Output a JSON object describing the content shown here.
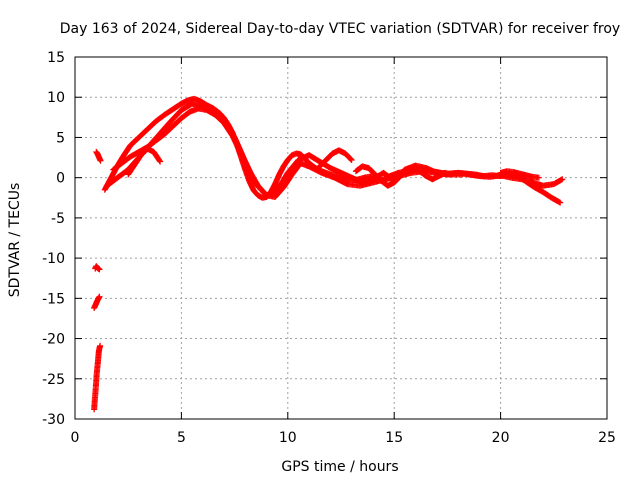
{
  "chart_data": {
    "type": "scatter",
    "title": "Day 163 of 2024, Sidereal Day-to-day VTEC variation (SDTVAR) for receiver froy",
    "xlabel": "GPS time / hours",
    "ylabel": "SDTVAR / TECUs",
    "xlim": [
      0,
      25
    ],
    "ylim": [
      -30,
      15
    ],
    "xticks": [
      0,
      5,
      10,
      15,
      20,
      25
    ],
    "yticks": [
      -30,
      -25,
      -20,
      -15,
      -10,
      -5,
      0,
      5,
      10,
      15
    ],
    "grid": true,
    "marker": "plus",
    "series": [
      {
        "name": "SDTVAR",
        "color": "#ff0000",
        "tracks": [
          {
            "x": [
              1.0,
              1.05,
              1.1,
              1.15,
              1.2
            ],
            "y": [
              3.2,
              3.0,
              2.7,
              2.4,
              2.1
            ]
          },
          {
            "x": [
              0.95,
              1.0,
              1.05,
              1.1,
              1.15
            ],
            "y": [
              -11.3,
              -11.0,
              -11.2,
              -11.3,
              -11.4
            ]
          },
          {
            "x": [
              0.9,
              0.95,
              1.0,
              1.05,
              1.1,
              1.15
            ],
            "y": [
              -16.2,
              -15.9,
              -15.6,
              -15.3,
              -15.0,
              -14.8
            ]
          },
          {
            "x": [
              0.9,
              0.92,
              0.95,
              0.98,
              1.0,
              1.02,
              1.05,
              1.08,
              1.1,
              1.12,
              1.15,
              1.18
            ],
            "y": [
              -28.8,
              -28.0,
              -27.0,
              -26.0,
              -25.2,
              -24.4,
              -23.6,
              -22.8,
              -22.2,
              -21.6,
              -21.2,
              -20.9
            ]
          },
          {
            "x": [
              1.4,
              1.5,
              1.8,
              2.0,
              2.3,
              2.6,
              3.0,
              3.4,
              3.8,
              4.2,
              4.6,
              5.0,
              5.3,
              5.6,
              5.9,
              6.2,
              6.5,
              6.8,
              7.0,
              7.2,
              7.4,
              7.6,
              7.8,
              8.0,
              8.2,
              8.4,
              8.6,
              8.8,
              9.0,
              9.2,
              9.4,
              9.6,
              9.8,
              10.0,
              10.2,
              10.4,
              10.6,
              10.8,
              11.0,
              11.3,
              11.6,
              12.0,
              12.4,
              12.8,
              13.2,
              13.6,
              14.0,
              14.4,
              14.8,
              15.2,
              15.6,
              16.0,
              16.4,
              16.8,
              17.2,
              17.6,
              18.0,
              18.4,
              18.8,
              19.2,
              19.6,
              20.0,
              20.4,
              20.8,
              21.2,
              21.6,
              22.0,
              22.4,
              22.8
            ],
            "y": [
              -1.5,
              -1.0,
              0.5,
              1.5,
              2.8,
              4.0,
              5.0,
              6.0,
              7.0,
              7.8,
              8.5,
              9.2,
              9.6,
              9.8,
              9.5,
              9.0,
              8.6,
              8.0,
              7.4,
              6.6,
              5.6,
              4.2,
              2.6,
              1.0,
              -0.5,
              -1.6,
              -2.2,
              -2.5,
              -2.4,
              -1.8,
              -0.8,
              0.4,
              1.4,
              2.2,
              2.8,
              3.0,
              2.9,
              2.4,
              1.8,
              1.2,
              0.8,
              0.4,
              0.2,
              -0.2,
              -0.3,
              0.0,
              0.2,
              -0.4,
              0.2,
              0.6,
              0.8,
              0.9,
              1.0,
              0.8,
              0.6,
              0.5,
              0.6,
              0.5,
              0.4,
              0.2,
              0.3,
              0.2,
              0.4,
              0.3,
              -0.5,
              -1.2,
              -1.8,
              -2.5,
              -3.1
            ]
          },
          {
            "x": [
              1.5,
              2.0,
              2.5,
              3.0,
              3.5,
              4.0,
              4.5,
              5.0,
              5.5,
              6.0,
              6.5,
              7.0,
              7.5,
              8.0,
              8.5,
              9.0,
              9.5,
              10.0,
              10.5,
              11.0,
              11.5,
              12.0,
              12.5,
              13.0,
              13.5,
              14.0,
              14.5,
              15.0,
              15.5,
              16.0,
              16.5,
              17.0,
              17.5,
              18.0,
              18.5,
              19.0,
              19.5,
              20.0,
              20.5,
              21.0,
              21.5,
              22.0,
              22.5,
              22.9
            ],
            "y": [
              -1.0,
              0.0,
              1.0,
              2.5,
              4.0,
              5.5,
              7.0,
              8.4,
              9.2,
              8.8,
              8.0,
              7.0,
              5.0,
              2.0,
              -0.8,
              -2.2,
              -1.6,
              0.6,
              2.2,
              2.8,
              2.0,
              1.2,
              0.6,
              0.0,
              -0.6,
              -0.2,
              0.6,
              -0.4,
              1.0,
              1.5,
              1.2,
              0.6,
              0.4,
              0.6,
              0.4,
              0.2,
              0.1,
              0.3,
              0.0,
              -0.2,
              -0.6,
              -1.0,
              -0.8,
              -0.2
            ]
          },
          {
            "x": [
              1.8,
              2.2,
              2.6,
              3.0,
              3.4,
              3.8,
              4.2,
              4.6,
              5.0,
              5.4,
              5.8,
              6.2,
              6.6,
              7.0,
              7.4,
              7.8,
              8.2,
              8.6,
              9.0,
              9.4,
              9.8,
              10.2,
              10.6,
              11.0,
              11.6,
              12.2,
              12.8,
              13.4,
              14.0,
              14.6,
              15.2,
              15.8,
              16.4,
              17.0,
              17.6,
              18.2
            ],
            "y": [
              1.0,
              1.8,
              2.6,
              3.2,
              3.8,
              4.6,
              5.4,
              6.4,
              7.4,
              8.2,
              8.6,
              8.4,
              7.8,
              6.8,
              5.2,
              3.0,
              0.8,
              -1.0,
              -2.2,
              -2.4,
              -1.2,
              0.4,
              1.8,
              1.4,
              0.6,
              0.0,
              -0.8,
              -1.0,
              -0.6,
              -0.2,
              0.2,
              0.6,
              0.8,
              0.6,
              0.4,
              0.4
            ]
          },
          {
            "x": [
              2.5,
              2.8,
              3.1,
              3.4,
              3.7,
              4.0
            ],
            "y": [
              0.4,
              1.6,
              2.8,
              3.6,
              3.2,
              2.0
            ]
          },
          {
            "x": [
              11.5,
              11.8,
              12.1,
              12.4,
              12.7,
              13.0
            ],
            "y": [
              1.4,
              2.2,
              3.0,
              3.4,
              3.0,
              2.2
            ]
          },
          {
            "x": [
              13.2,
              13.5,
              13.8,
              14.1,
              14.4,
              14.7,
              15.0,
              15.3,
              15.6,
              15.9,
              16.2,
              16.5,
              16.8,
              17.1,
              17.4
            ],
            "y": [
              0.8,
              1.4,
              1.2,
              0.4,
              -0.4,
              -1.0,
              -0.6,
              0.2,
              1.0,
              1.2,
              0.8,
              0.2,
              -0.2,
              0.2,
              0.6
            ]
          },
          {
            "x": [
              20.0,
              20.3,
              20.6,
              20.9,
              21.2,
              21.5,
              21.8
            ],
            "y": [
              0.6,
              0.8,
              0.7,
              0.5,
              0.3,
              0.1,
              0.0
            ]
          }
        ]
      }
    ]
  }
}
